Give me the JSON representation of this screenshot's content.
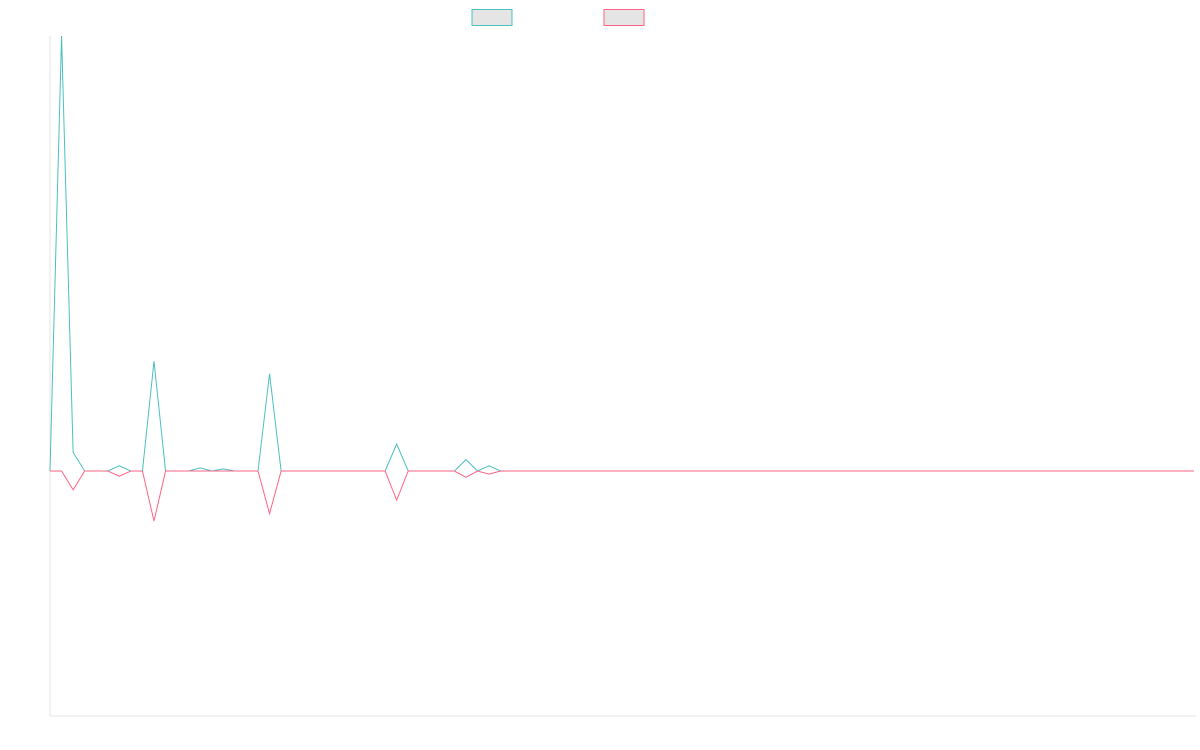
{
  "chart_data": {
    "type": "line",
    "title": "",
    "xlabel": "",
    "ylabel": "",
    "legend_position": "top-center",
    "grid": false,
    "x_count": 100,
    "ylim": [
      -2.35,
      4.2
    ],
    "series": [
      {
        "color": "#4bc0c0",
        "fill": "#e5e5e5",
        "values": [
          0.0,
          4.2,
          0.18,
          0.0,
          0.0,
          0.0,
          0.05,
          0.0,
          0.0,
          1.06,
          0.0,
          0.0,
          0.0,
          0.03,
          0.0,
          0.02,
          0.0,
          0.0,
          0.0,
          0.94,
          0.0,
          0.0,
          0.0,
          0.0,
          0.0,
          0.0,
          0.0,
          0.0,
          0.0,
          0.0,
          0.26,
          0.0,
          0.0,
          0.0,
          0.0,
          0.0,
          0.11,
          0.0,
          0.05,
          0.0,
          0.0,
          0.0,
          0.0,
          0.0,
          0.0,
          0.0,
          0.0,
          0.0,
          0.0,
          0.0,
          0.0,
          0.0,
          0.0,
          0.0,
          0.0,
          0.0,
          0.0,
          0.0,
          0.0,
          0.0,
          0.0,
          0.0,
          0.0,
          0.0,
          0.0,
          0.0,
          0.0,
          0.0,
          0.0,
          0.0,
          0.0,
          0.0,
          0.0,
          0.0,
          0.0,
          0.0,
          0.0,
          0.0,
          0.0,
          0.0,
          0.0,
          0.0,
          0.0,
          0.0,
          0.0,
          0.0,
          0.0,
          0.0,
          0.0,
          0.0,
          0.0,
          0.0,
          0.0,
          0.0,
          0.0,
          0.0,
          0.0,
          0.0,
          0.0,
          0.0
        ]
      },
      {
        "color": "#ff6384",
        "fill": "#e5e5e5",
        "values": [
          0.0,
          0.0,
          -0.18,
          0.0,
          0.0,
          0.0,
          -0.05,
          0.0,
          0.0,
          -0.48,
          0.0,
          0.0,
          0.0,
          0.0,
          0.0,
          0.0,
          0.0,
          0.0,
          0.0,
          -0.41,
          0.0,
          0.0,
          0.0,
          0.0,
          0.0,
          0.0,
          0.0,
          0.0,
          0.0,
          0.0,
          -0.28,
          0.0,
          0.0,
          0.0,
          0.0,
          0.0,
          -0.06,
          0.0,
          -0.03,
          0.0,
          0.0,
          0.0,
          0.0,
          0.0,
          0.0,
          0.0,
          0.0,
          0.0,
          0.0,
          0.0,
          0.0,
          0.0,
          0.0,
          0.0,
          0.0,
          0.0,
          0.0,
          0.0,
          0.0,
          0.0,
          0.0,
          0.0,
          0.0,
          0.0,
          0.0,
          0.0,
          0.0,
          0.0,
          0.0,
          0.0,
          0.0,
          0.0,
          0.0,
          0.0,
          0.0,
          0.0,
          0.0,
          0.0,
          0.0,
          0.0,
          0.0,
          0.0,
          0.0,
          0.0,
          0.0,
          0.0,
          0.0,
          0.0,
          0.0,
          0.0,
          0.0,
          0.0,
          0.0,
          0.0,
          0.0,
          0.0,
          0.0,
          0.0,
          0.0,
          0.0
        ]
      }
    ]
  }
}
